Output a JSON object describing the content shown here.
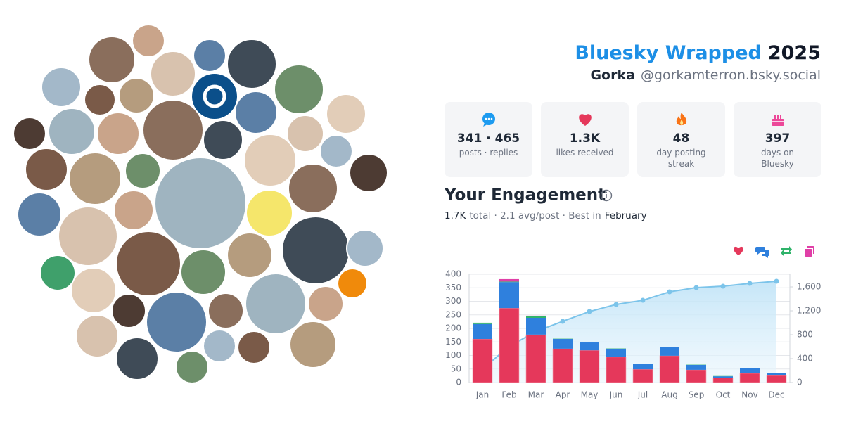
{
  "header": {
    "title": "Bluesky Wrapped",
    "year": "2025",
    "name": "Gorka",
    "handle": "@gorkamterron.bsky.social"
  },
  "stats": [
    {
      "value": "341 · 465",
      "label": "posts · replies"
    },
    {
      "value": "1.3K",
      "label": "likes received"
    },
    {
      "value": "48",
      "label": "day posting streak"
    },
    {
      "value": "397",
      "label": "days on Bluesky"
    }
  ],
  "engagement": {
    "title": "Your Engagement",
    "total": "1.7K",
    "summary": "total · 2.1 avg/post · Best in",
    "best": "February"
  },
  "chart_data": {
    "type": "bar",
    "categories": [
      "Jan",
      "Feb",
      "Mar",
      "Apr",
      "May",
      "Jun",
      "Jul",
      "Aug",
      "Sep",
      "Oct",
      "Nov",
      "Dec"
    ],
    "series": [
      {
        "color": "#e5385b",
        "values": [
          161,
          275,
          177,
          125,
          119,
          94,
          49,
          99,
          47,
          18,
          34,
          26
        ]
      },
      {
        "color": "#2f80dd",
        "values": [
          55,
          96,
          62,
          36,
          29,
          31,
          21,
          31,
          18,
          5,
          18,
          8
        ]
      },
      {
        "color": "#2fb36a",
        "values": [
          5,
          2,
          6,
          1,
          0,
          1,
          0,
          1,
          1,
          1,
          0,
          1
        ]
      },
      {
        "color": "#e03fa7",
        "values": [
          0,
          9,
          2,
          0,
          0,
          0,
          0,
          0,
          0,
          0,
          0,
          0
        ]
      },
      {
        "type": "line",
        "axis": "y2",
        "color": "#7cc4ea",
        "values": [
          225,
          606,
          853,
          1024,
          1188,
          1306,
          1376,
          1518,
          1588,
          1612,
          1659,
          1694
        ]
      }
    ],
    "ylim": [
      0,
      400
    ],
    "yticks": [
      0,
      50,
      100,
      150,
      200,
      250,
      300,
      350,
      400
    ],
    "y2lim": [
      0,
      1812
    ],
    "y2ticks": [
      0,
      400,
      800,
      {
        "value": 1200,
        "label": "1,200"
      },
      {
        "value": 1600,
        "label": "1,600"
      }
    ],
    "grid": true
  }
}
